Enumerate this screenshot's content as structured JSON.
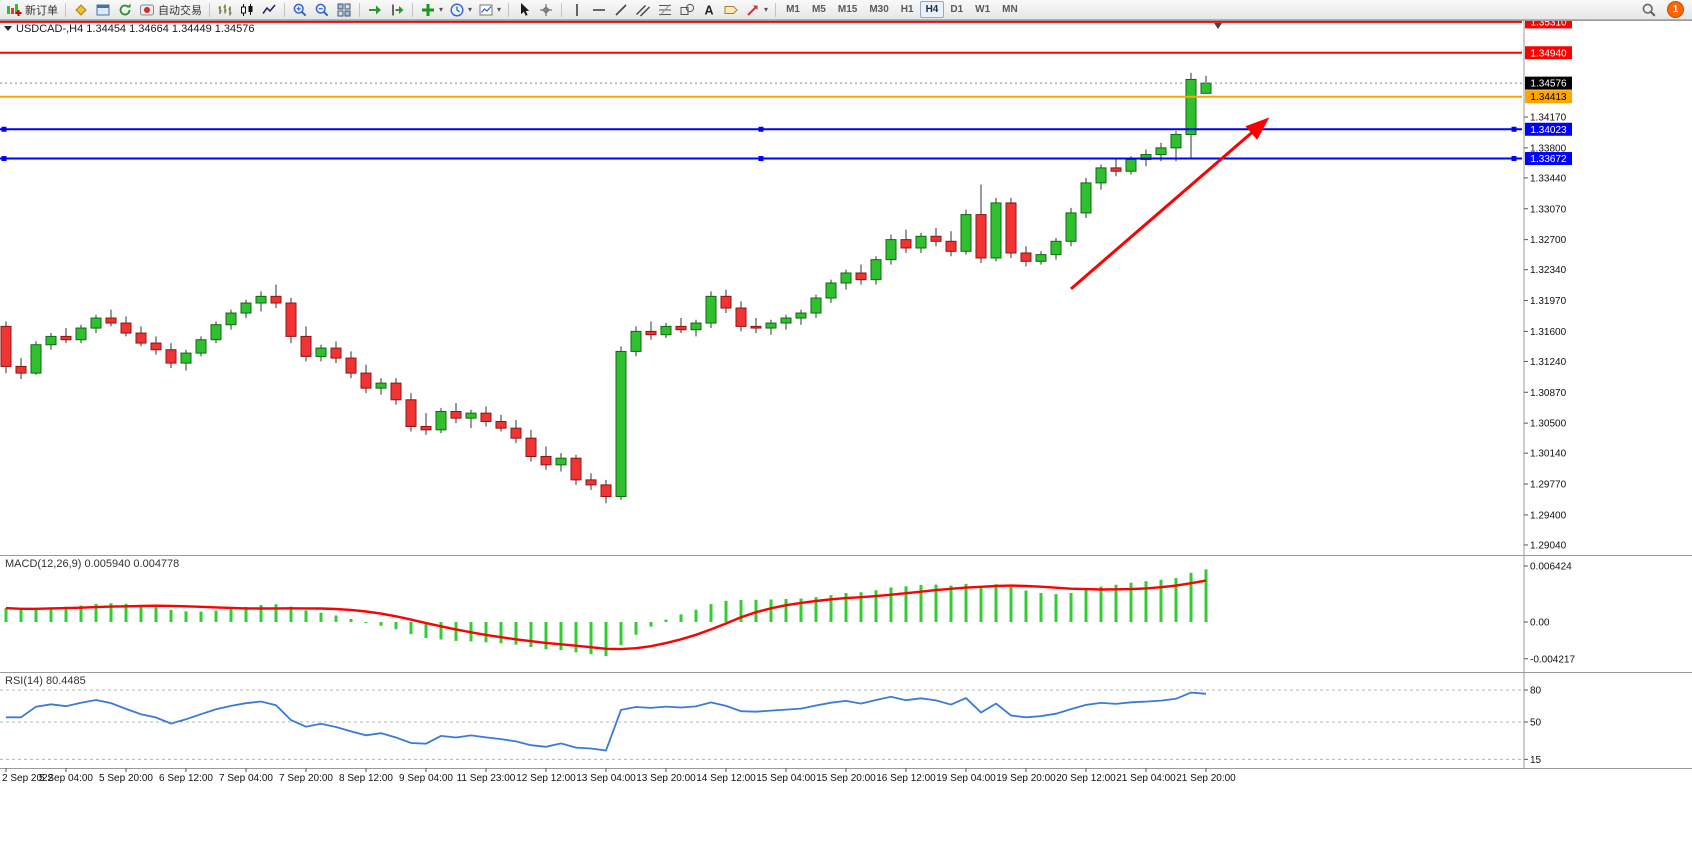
{
  "app": {
    "notification_badge": "1"
  },
  "toolbar": {
    "groups": [
      {
        "items": [
          {
            "name": "new-order",
            "glyph": "neworder",
            "label": "新订单"
          }
        ]
      },
      {
        "items": [
          {
            "name": "metaeditor",
            "glyph": "diamond"
          },
          {
            "name": "market-watch",
            "glyph": "window"
          },
          {
            "name": "refresh",
            "glyph": "refresh"
          },
          {
            "name": "auto-trading",
            "glyph": "autotrade",
            "label": "自动交易"
          }
        ]
      },
      {
        "items": [
          {
            "name": "chart-bars",
            "glyph": "bars"
          },
          {
            "name": "chart-candles",
            "glyph": "candles"
          },
          {
            "name": "chart-line",
            "glyph": "linechart"
          }
        ]
      },
      {
        "items": [
          {
            "name": "zoom-in",
            "glyph": "zoomin"
          },
          {
            "name": "zoom-out",
            "glyph": "zoomout"
          },
          {
            "name": "tile-windows",
            "glyph": "tile"
          }
        ]
      },
      {
        "items": [
          {
            "name": "auto-scroll",
            "glyph": "autoscroll"
          },
          {
            "name": "chart-shift",
            "glyph": "chartshift"
          }
        ]
      },
      {
        "items": [
          {
            "name": "indicators",
            "glyph": "indicators",
            "dropdown": true
          },
          {
            "name": "periods",
            "glyph": "clock",
            "dropdown": true
          },
          {
            "name": "templates",
            "glyph": "template",
            "dropdown": true
          }
        ]
      },
      {
        "items": [
          {
            "name": "cursor",
            "glyph": "cursor"
          },
          {
            "name": "crosshair",
            "glyph": "crosshair"
          }
        ]
      },
      {
        "items": [
          {
            "name": "vertical-line",
            "glyph": "vline"
          },
          {
            "name": "horizontal-line",
            "glyph": "hline"
          },
          {
            "name": "trendline",
            "glyph": "trendline"
          },
          {
            "name": "equidistant-channel",
            "glyph": "channel"
          },
          {
            "name": "fibonacci",
            "glyph": "fibo"
          },
          {
            "name": "shapes",
            "glyph": "shapes"
          },
          {
            "name": "text",
            "glyph": "textA"
          },
          {
            "name": "text-label",
            "glyph": "label"
          },
          {
            "name": "arrows",
            "glyph": "arrows",
            "dropdown": true
          }
        ]
      }
    ],
    "timeframes": [
      "M1",
      "M5",
      "M15",
      "M30",
      "H1",
      "H4",
      "D1",
      "W1",
      "MN"
    ],
    "active_timeframe": "H4"
  },
  "chart": {
    "info_symbol": "USDCAD-,H4",
    "info_ohlc": [
      "1.34454",
      "1.34664",
      "1.34449",
      "1.34576"
    ]
  },
  "chart_data": {
    "type": "candlestick",
    "symbol": "USDCAD",
    "timeframe": "H4",
    "colors": {
      "bull": "#2fbf2f",
      "bull_border": "#0c6b0c",
      "bear": "#f03333",
      "bear_border": "#8f1414",
      "wick": "#333333",
      "macd_histogram": "#32cd32",
      "macd_signal": "#ff0000",
      "rsi_line": "#3a7bd5"
    },
    "x_labels": [
      "2 Sep 2022",
      "5 Sep 04:00",
      "5 Sep 20:00",
      "6 Sep 12:00",
      "7 Sep 04:00",
      "7 Sep 20:00",
      "8 Sep 12:00",
      "9 Sep 04:00",
      "11 Sep 23:00",
      "12 Sep 12:00",
      "13 Sep 04:00",
      "13 Sep 20:00",
      "14 Sep 12:00",
      "15 Sep 04:00",
      "15 Sep 20:00",
      "16 Sep 12:00",
      "19 Sep 04:00",
      "19 Sep 20:00",
      "20 Sep 12:00",
      "21 Sep 04:00",
      "21 Sep 20:00"
    ],
    "label_every": 4,
    "candles": [
      [
        1.3166,
        1.3172,
        1.311,
        1.3118
      ],
      [
        1.3118,
        1.3128,
        1.3103,
        1.311
      ],
      [
        1.311,
        1.3148,
        1.3108,
        1.3144
      ],
      [
        1.3144,
        1.3158,
        1.3138,
        1.3154
      ],
      [
        1.3154,
        1.3164,
        1.3146,
        1.315
      ],
      [
        1.315,
        1.3168,
        1.3146,
        1.3164
      ],
      [
        1.3164,
        1.318,
        1.3158,
        1.3176
      ],
      [
        1.3176,
        1.3186,
        1.3166,
        1.317
      ],
      [
        1.317,
        1.3178,
        1.3154,
        1.3158
      ],
      [
        1.3158,
        1.3166,
        1.3142,
        1.3146
      ],
      [
        1.3146,
        1.3154,
        1.3132,
        1.3138
      ],
      [
        1.3138,
        1.3146,
        1.3116,
        1.3122
      ],
      [
        1.3122,
        1.3138,
        1.3113,
        1.3134
      ],
      [
        1.3134,
        1.3154,
        1.313,
        1.315
      ],
      [
        1.315,
        1.3172,
        1.3146,
        1.3168
      ],
      [
        1.3168,
        1.3186,
        1.3162,
        1.3182
      ],
      [
        1.3182,
        1.3198,
        1.3176,
        1.3194
      ],
      [
        1.3194,
        1.3208,
        1.3184,
        1.3202
      ],
      [
        1.3202,
        1.3216,
        1.3188,
        1.3194
      ],
      [
        1.3194,
        1.32,
        1.3146,
        1.3154
      ],
      [
        1.3154,
        1.3166,
        1.3124,
        1.313
      ],
      [
        1.313,
        1.3144,
        1.3124,
        1.314
      ],
      [
        1.314,
        1.3148,
        1.3122,
        1.3128
      ],
      [
        1.3128,
        1.3136,
        1.3104,
        1.311
      ],
      [
        1.311,
        1.312,
        1.3086,
        1.3092
      ],
      [
        1.3092,
        1.3104,
        1.3084,
        1.3098
      ],
      [
        1.3098,
        1.3104,
        1.3072,
        1.3078
      ],
      [
        1.3078,
        1.3086,
        1.304,
        1.3046
      ],
      [
        1.3046,
        1.3062,
        1.3036,
        1.3042
      ],
      [
        1.3042,
        1.3068,
        1.3038,
        1.3064
      ],
      [
        1.3064,
        1.3074,
        1.305,
        1.3056
      ],
      [
        1.3056,
        1.3066,
        1.3044,
        1.3062
      ],
      [
        1.3062,
        1.307,
        1.3046,
        1.3052
      ],
      [
        1.3052,
        1.306,
        1.304,
        1.3044
      ],
      [
        1.3044,
        1.3054,
        1.3026,
        1.3032
      ],
      [
        1.3032,
        1.3042,
        1.3004,
        1.301
      ],
      [
        1.301,
        1.3022,
        1.2994,
        1.3
      ],
      [
        1.3,
        1.3014,
        1.2992,
        1.3008
      ],
      [
        1.3008,
        1.3012,
        1.2976,
        1.2982
      ],
      [
        1.2982,
        1.299,
        1.297,
        1.2976
      ],
      [
        1.2976,
        1.2982,
        1.2954,
        1.2962
      ],
      [
        1.2962,
        1.3142,
        1.2958,
        1.3136
      ],
      [
        1.3136,
        1.3166,
        1.313,
        1.316
      ],
      [
        1.316,
        1.3172,
        1.315,
        1.3156
      ],
      [
        1.3156,
        1.317,
        1.3152,
        1.3166
      ],
      [
        1.3166,
        1.3176,
        1.3158,
        1.3162
      ],
      [
        1.3162,
        1.3174,
        1.3154,
        1.317
      ],
      [
        1.317,
        1.3208,
        1.3164,
        1.3202
      ],
      [
        1.3202,
        1.321,
        1.3182,
        1.3188
      ],
      [
        1.3188,
        1.3196,
        1.316,
        1.3166
      ],
      [
        1.3166,
        1.3176,
        1.3158,
        1.3164
      ],
      [
        1.3164,
        1.3174,
        1.3156,
        1.317
      ],
      [
        1.317,
        1.318,
        1.3162,
        1.3176
      ],
      [
        1.3176,
        1.3186,
        1.3168,
        1.3182
      ],
      [
        1.3182,
        1.3204,
        1.3176,
        1.32
      ],
      [
        1.32,
        1.3222,
        1.3194,
        1.3218
      ],
      [
        1.3218,
        1.3234,
        1.321,
        1.323
      ],
      [
        1.323,
        1.324,
        1.3216,
        1.3222
      ],
      [
        1.3222,
        1.325,
        1.3216,
        1.3246
      ],
      [
        1.3246,
        1.3276,
        1.324,
        1.327
      ],
      [
        1.327,
        1.3282,
        1.3254,
        1.326
      ],
      [
        1.326,
        1.3278,
        1.3254,
        1.3274
      ],
      [
        1.3274,
        1.3284,
        1.3262,
        1.3268
      ],
      [
        1.3268,
        1.328,
        1.325,
        1.3256
      ],
      [
        1.3256,
        1.3306,
        1.3252,
        1.33
      ],
      [
        1.33,
        1.3336,
        1.3242,
        1.3248
      ],
      [
        1.3248,
        1.332,
        1.3244,
        1.3314
      ],
      [
        1.3314,
        1.332,
        1.3248,
        1.3254
      ],
      [
        1.3254,
        1.3262,
        1.3238,
        1.3244
      ],
      [
        1.3244,
        1.3256,
        1.324,
        1.3252
      ],
      [
        1.3252,
        1.3272,
        1.3246,
        1.3268
      ],
      [
        1.3268,
        1.3308,
        1.3262,
        1.3302
      ],
      [
        1.3302,
        1.3344,
        1.3296,
        1.3338
      ],
      [
        1.3338,
        1.336,
        1.333,
        1.3356
      ],
      [
        1.3356,
        1.3368,
        1.3346,
        1.3352
      ],
      [
        1.3352,
        1.337,
        1.3348,
        1.3366
      ],
      [
        1.3366,
        1.3378,
        1.3358,
        1.3372
      ],
      [
        1.3372,
        1.3386,
        1.3364,
        1.338
      ],
      [
        1.338,
        1.34,
        1.3364,
        1.3396
      ],
      [
        1.3396,
        1.347,
        1.3366,
        1.3462
      ],
      [
        1.34454,
        1.34664,
        1.34449,
        1.34576
      ]
    ],
    "y_ticks": [
      1.3417,
      1.338,
      1.3344,
      1.3307,
      1.327,
      1.3234,
      1.3197,
      1.316,
      1.3124,
      1.3087,
      1.305,
      1.3014,
      1.2977,
      1.294,
      1.2904
    ],
    "hlines": [
      {
        "price": 1.3531,
        "label": "1.35310",
        "color": "#ff0000",
        "text_color": "#ffffff",
        "width": 2,
        "handles": false
      },
      {
        "price": 1.3494,
        "label": "1.34940",
        "color": "#ff0000",
        "text_color": "#ffffff",
        "width": 2,
        "handles": false
      },
      {
        "price": 1.34413,
        "label": "1.34413",
        "color": "#ffa500",
        "text_color": "#000000",
        "width": 2,
        "handles": false
      },
      {
        "price": 1.34023,
        "label": "1.34023",
        "color": "#0000ff",
        "text_color": "#ffffff",
        "width": 2,
        "handles": true
      },
      {
        "price": 1.33672,
        "label": "1.33672",
        "color": "#0000ff",
        "text_color": "#ffffff",
        "width": 2,
        "handles": true
      }
    ],
    "current_price": {
      "value": 1.34576,
      "label": "1.34576",
      "box_color": "#000000",
      "text_color": "#ffffff"
    },
    "annotations": [
      {
        "type": "arrow",
        "color": "#ff0000",
        "width": 3,
        "from": {
          "bar": 71,
          "price": 1.3211
        },
        "to": {
          "bar": 84,
          "price": 1.3413
        }
      }
    ]
  },
  "indicators": {
    "macd": {
      "label": "MACD(12,26,9)",
      "value_main": "0.005940",
      "value_signal": "0.004778",
      "axis": [
        {
          "value": 0.006424,
          "text": "0.006424"
        },
        {
          "value": 0.0,
          "text": "0.00"
        },
        {
          "value": -0.004217,
          "text": "-0.004217"
        }
      ]
    },
    "rsi": {
      "label": "RSI(14)",
      "value": "80.4485",
      "levels": [
        {
          "value": 80,
          "text": "80"
        },
        {
          "value": 50,
          "text": "50"
        },
        {
          "value": 15,
          "text": "15"
        }
      ]
    }
  }
}
